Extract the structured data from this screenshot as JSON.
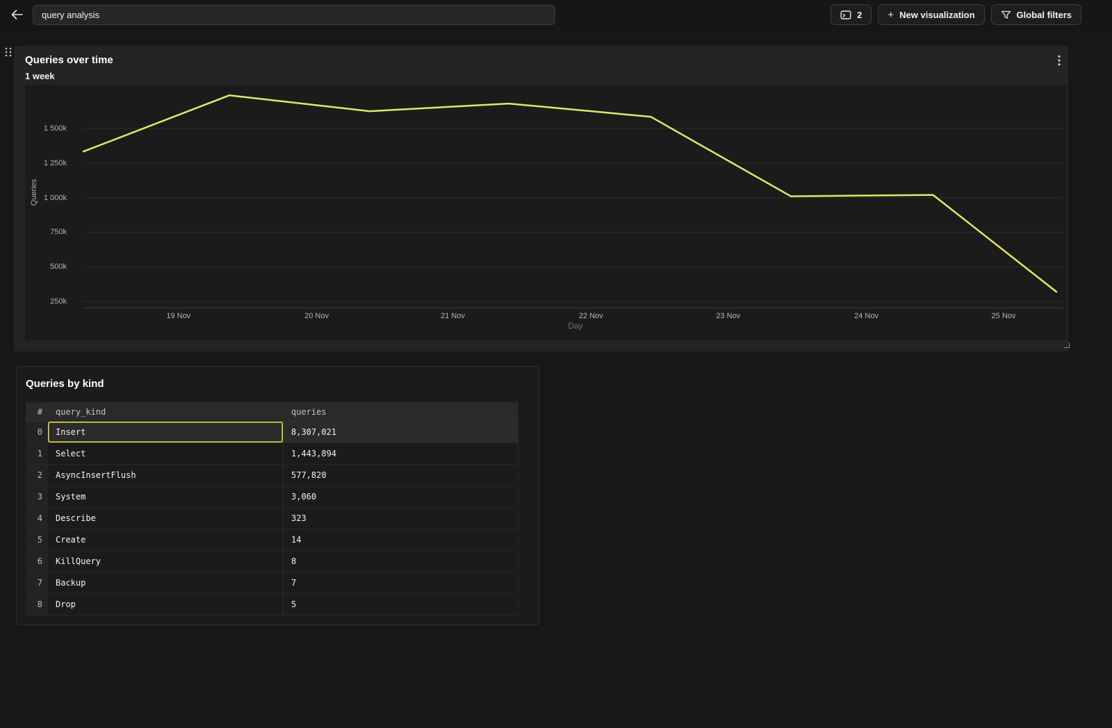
{
  "topbar": {
    "title_input_value": "query analysis",
    "console_button": {
      "icon": "terminal-window-icon",
      "count": "2"
    },
    "new_viz_button": {
      "plus": "+",
      "label": "New visualization"
    },
    "global_filters_button": {
      "icon": "filter-funnel-icon",
      "label": "Global filters"
    }
  },
  "chart_card": {
    "title": "Queries over time",
    "subtitle": "1 week",
    "menu_icon": "kebab-vertical-icon"
  },
  "chart_data": {
    "type": "line",
    "title": "Queries over time",
    "subtitle": "1 week",
    "xlabel": "Day",
    "ylabel": "Queries",
    "grid": true,
    "legend": false,
    "y_range": [
      250000,
      1500000
    ],
    "y_ticks": [
      {
        "label": "1 500k",
        "value": 1500000
      },
      {
        "label": "1 250k",
        "value": 1250000
      },
      {
        "label": "1 000k",
        "value": 1000000
      },
      {
        "label": "750k",
        "value": 750000
      },
      {
        "label": "500k",
        "value": 500000
      },
      {
        "label": "250k",
        "value": 250000
      }
    ],
    "x_ticks": [
      {
        "label": "19 Nov",
        "t": 0.097
      },
      {
        "label": "20 Nov",
        "t": 0.238
      },
      {
        "label": "21 Nov",
        "t": 0.377
      },
      {
        "label": "22 Nov",
        "t": 0.518
      },
      {
        "label": "23 Nov",
        "t": 0.658
      },
      {
        "label": "24 Nov",
        "t": 0.799
      },
      {
        "label": "25 Nov",
        "t": 0.939
      }
    ],
    "series": [
      {
        "name": "Queries",
        "color": "#e5e95c",
        "points": [
          {
            "x": "18 Nov",
            "t": 0.0,
            "value": 1334000
          },
          {
            "x": "19 Nov",
            "t": 0.149,
            "value": 1740000
          },
          {
            "x": "20 Nov",
            "t": 0.292,
            "value": 1625000
          },
          {
            "x": "21 Nov",
            "t": 0.434,
            "value": 1680000
          },
          {
            "x": "22 Nov",
            "t": 0.579,
            "value": 1585000
          },
          {
            "x": "23 Nov",
            "t": 0.722,
            "value": 1010000
          },
          {
            "x": "24 Nov",
            "t": 0.867,
            "value": 1020000
          },
          {
            "x": "25 Nov",
            "t": 0.993,
            "value": 320000
          }
        ]
      }
    ]
  },
  "table_card": {
    "title": "Queries by kind",
    "columns": [
      "#",
      "query_kind",
      "queries"
    ],
    "rows": [
      {
        "index": "0",
        "query_kind": "Insert",
        "queries": "8,307,021",
        "selected": true
      },
      {
        "index": "1",
        "query_kind": "Select",
        "queries": "1,443,894",
        "selected": false
      },
      {
        "index": "2",
        "query_kind": "AsyncInsertFlush",
        "queries": "577,820",
        "selected": false
      },
      {
        "index": "3",
        "query_kind": "System",
        "queries": "3,060",
        "selected": false
      },
      {
        "index": "4",
        "query_kind": "Describe",
        "queries": "323",
        "selected": false
      },
      {
        "index": "5",
        "query_kind": "Create",
        "queries": "14",
        "selected": false
      },
      {
        "index": "6",
        "query_kind": "KillQuery",
        "queries": "8",
        "selected": false
      },
      {
        "index": "7",
        "query_kind": "Backup",
        "queries": "7",
        "selected": false
      },
      {
        "index": "8",
        "query_kind": "Drop",
        "queries": "5",
        "selected": false
      }
    ]
  },
  "colors": {
    "page_bg": "#171717",
    "chart_card_bg": "#242424",
    "plot_bg": "#1b1b1b",
    "table_card_bg": "#1b1b1b",
    "line": "#e5e95c",
    "selection": "#ece83f",
    "gridline": "#2d2d2d",
    "axis_line": "#3e3e3e",
    "text_muted": "#b3b3b3"
  }
}
